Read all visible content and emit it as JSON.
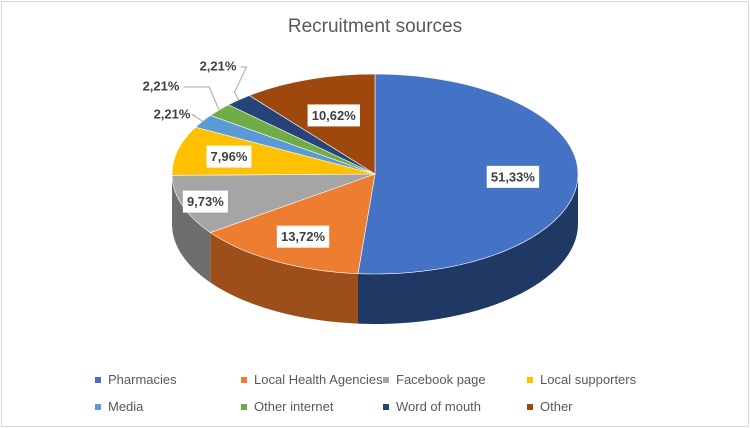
{
  "chart_data": {
    "type": "pie",
    "title": "Recruitment sources",
    "style": "3d",
    "legend_position": "bottom",
    "categories": [
      "Pharmacies",
      "Local Health Agencies",
      "Facebook page",
      "Local supporters",
      "Media",
      "Other internet",
      "Word of mouth",
      "Other"
    ],
    "values": [
      51.33,
      13.72,
      9.73,
      7.96,
      2.21,
      2.21,
      2.21,
      10.62
    ],
    "labels": [
      "51,33%",
      "13,72%",
      "9,73%",
      "7,96%",
      "2,21%",
      "2,21%",
      "2,21%",
      "10,62%"
    ],
    "colors": [
      "#4472c4",
      "#ed7d31",
      "#a5a5a5",
      "#ffc000",
      "#5b9bd5",
      "#70ad47",
      "#264478",
      "#9e480e"
    ],
    "side_colors": [
      "#1f3864",
      "#9c4f1a",
      "#6e6e6e",
      "#a67c00",
      "#3a6d9e",
      "#4a7a2e",
      "#16294a",
      "#6b300a"
    ]
  }
}
